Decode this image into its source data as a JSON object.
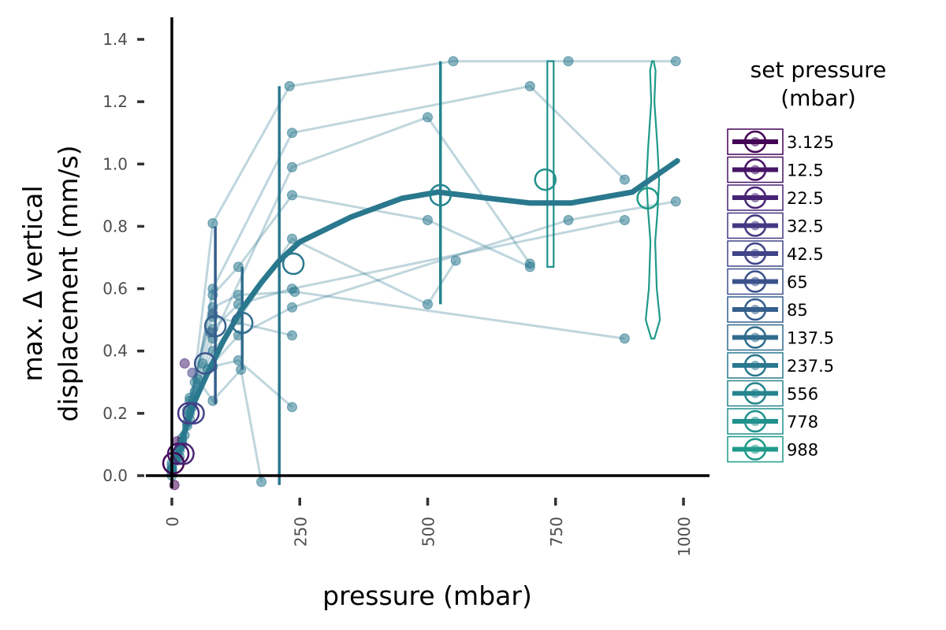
{
  "chart_data": {
    "type": "line",
    "xlabel": "pressure (mbar)",
    "ylabel_lines": [
      "max. Δ vertical",
      "displacement (mm/s)"
    ],
    "xlim": [
      0,
      1000
    ],
    "ylim": [
      0,
      1.4
    ],
    "x_ticks": [
      0,
      250,
      500,
      750,
      1000
    ],
    "x_tick_labels": [
      "0",
      "250",
      "500",
      "750",
      "1000"
    ],
    "y_ticks": [
      0.0,
      0.2,
      0.4,
      0.6,
      0.8,
      1.0,
      1.2,
      1.4
    ],
    "y_tick_labels": [
      "0.0",
      "0.2",
      "0.4",
      "0.6",
      "0.8",
      "1.0",
      "1.2",
      "1.4"
    ],
    "grid": false,
    "legend": {
      "title_lines": [
        "set pressure",
        "(mbar)"
      ],
      "placement": "right",
      "entries": [
        {
          "label": "3.125",
          "color": "#440154"
        },
        {
          "label": "12.5",
          "color": "#481466"
        },
        {
          "label": "22.5",
          "color": "#482475"
        },
        {
          "label": "32.5",
          "color": "#453781"
        },
        {
          "label": "42.5",
          "color": "#414487"
        },
        {
          "label": "65",
          "color": "#3b528b"
        },
        {
          "label": "85",
          "color": "#355f8d"
        },
        {
          "label": "137.5",
          "color": "#2f6c8e"
        },
        {
          "label": "237.5",
          "color": "#2a788e"
        },
        {
          "label": "556",
          "color": "#25848e"
        },
        {
          "label": "778",
          "color": "#21918c"
        },
        {
          "label": "988",
          "color": "#1f9a8a"
        }
      ]
    },
    "smooth_trend": {
      "color": "#2a788e",
      "points": [
        [
          0,
          0.03
        ],
        [
          10,
          0.06
        ],
        [
          25,
          0.14
        ],
        [
          45,
          0.24
        ],
        [
          70,
          0.33
        ],
        [
          100,
          0.43
        ],
        [
          135,
          0.53
        ],
        [
          175,
          0.62
        ],
        [
          210,
          0.69
        ],
        [
          250,
          0.75
        ],
        [
          350,
          0.83
        ],
        [
          450,
          0.89
        ],
        [
          520,
          0.91
        ],
        [
          620,
          0.89
        ],
        [
          700,
          0.875
        ],
        [
          780,
          0.875
        ],
        [
          900,
          0.91
        ],
        [
          988,
          1.01
        ]
      ]
    },
    "replicate_series": [
      {
        "name": "",
        "color": "#2a788e",
        "points": [
          [
            0,
            0.01
          ],
          [
            15,
            0.06
          ],
          [
            35,
            0.18
          ],
          [
            80,
            0.81
          ],
          [
            230,
            1.25
          ],
          [
            550,
            1.33
          ],
          [
            775,
            1.33
          ],
          [
            985,
            1.33
          ]
        ]
      },
      {
        "name": "",
        "color": "#2a788e",
        "points": [
          [
            0,
            0.03
          ],
          [
            15,
            0.09
          ],
          [
            35,
            0.2
          ],
          [
            80,
            0.6
          ],
          [
            235,
            1.1
          ],
          [
            700,
            1.25
          ],
          [
            885,
            0.95
          ]
        ]
      },
      {
        "name": "",
        "color": "#2a788e",
        "points": [
          [
            0,
            0.04
          ],
          [
            20,
            0.11
          ],
          [
            40,
            0.23
          ],
          [
            80,
            0.44
          ],
          [
            235,
            0.99
          ],
          [
            500,
            1.15
          ],
          [
            700,
            0.68
          ]
        ]
      },
      {
        "name": "",
        "color": "#2a788e",
        "points": [
          [
            5,
            0.05
          ],
          [
            20,
            0.12
          ],
          [
            45,
            0.3
          ],
          [
            80,
            0.58
          ],
          [
            130,
            0.67
          ],
          [
            235,
            0.9
          ],
          [
            500,
            0.82
          ],
          [
            700,
            0.67
          ]
        ]
      },
      {
        "name": "",
        "color": "#2a788e",
        "points": [
          [
            5,
            0.05
          ],
          [
            25,
            0.13
          ],
          [
            45,
            0.27
          ],
          [
            80,
            0.4
          ],
          [
            130,
            0.5
          ],
          [
            235,
            0.76
          ],
          [
            500,
            0.55
          ],
          [
            555,
            0.69
          ]
        ]
      },
      {
        "name": "",
        "color": "#2a788e",
        "points": [
          [
            0,
            0.0
          ],
          [
            20,
            0.1
          ],
          [
            40,
            0.22
          ],
          [
            70,
            0.34
          ],
          [
            130,
            0.45
          ],
          [
            235,
            0.54
          ],
          [
            775,
            0.82
          ],
          [
            985,
            0.88
          ]
        ]
      },
      {
        "name": "",
        "color": "#2a788e",
        "points": [
          [
            10,
            0.06
          ],
          [
            30,
            0.16
          ],
          [
            60,
            0.36
          ],
          [
            80,
            0.35
          ],
          [
            130,
            0.37
          ],
          [
            235,
            0.22
          ]
        ]
      },
      {
        "name": "",
        "color": "#2a788e",
        "points": [
          [
            10,
            0.07
          ],
          [
            30,
            0.17
          ],
          [
            50,
            0.31
          ],
          [
            80,
            0.24
          ],
          [
            135,
            0.34
          ],
          [
            175,
            -0.02
          ]
        ]
      },
      {
        "name": "",
        "color": "#2a788e",
        "points": [
          [
            0,
            0.02
          ],
          [
            15,
            0.08
          ],
          [
            35,
            0.24
          ],
          [
            80,
            0.47
          ],
          [
            130,
            0.55
          ],
          [
            235,
            0.6
          ],
          [
            885,
            0.82
          ]
        ]
      },
      {
        "name": "",
        "color": "#2a788e",
        "points": [
          [
            0,
            0.02
          ],
          [
            10,
            0.05
          ],
          [
            30,
            0.21
          ],
          [
            80,
            0.54
          ],
          [
            130,
            0.58
          ],
          [
            240,
            0.59
          ],
          [
            885,
            0.44
          ]
        ]
      },
      {
        "name": "",
        "color": "#2a788e",
        "points": [
          [
            0,
            0.02
          ],
          [
            15,
            0.09
          ],
          [
            35,
            0.25
          ],
          [
            80,
            0.51
          ],
          [
            235,
            0.45
          ]
        ]
      }
    ],
    "extra_points": [
      {
        "x": 80,
        "y": 0.52,
        "color": "#355f8d"
      },
      {
        "x": 75,
        "y": 0.46,
        "color": "#355f8d"
      },
      {
        "x": 25,
        "y": 0.36,
        "color": "#482475"
      },
      {
        "x": 40,
        "y": 0.33,
        "color": "#414487"
      },
      {
        "x": 5,
        "y": -0.03,
        "color": "#440154"
      },
      {
        "x": 10,
        "y": 0.11,
        "color": "#481466"
      }
    ],
    "group_means": [
      {
        "x": 3.125,
        "y": 0.04,
        "color": "#440154"
      },
      {
        "x": 12.5,
        "y": 0.07,
        "color": "#481466"
      },
      {
        "x": 22.5,
        "y": 0.07,
        "color": "#482475"
      },
      {
        "x": 32.5,
        "y": 0.2,
        "color": "#453781"
      },
      {
        "x": 42.5,
        "y": 0.2,
        "color": "#414487"
      },
      {
        "x": 65,
        "y": 0.36,
        "color": "#3b528b"
      },
      {
        "x": 85,
        "y": 0.48,
        "color": "#355f8d"
      },
      {
        "x": 137.5,
        "y": 0.49,
        "color": "#2f6c8e"
      },
      {
        "x": 237.5,
        "y": 0.68,
        "color": "#2a788e"
      },
      {
        "x": 525,
        "y": 0.9,
        "color": "#25848e"
      },
      {
        "x": 730,
        "y": 0.95,
        "color": "#21918c"
      },
      {
        "x": 930,
        "y": 0.89,
        "color": "#1f9a8a"
      }
    ],
    "ranges": [
      {
        "x": 85,
        "ymin": 0.23,
        "ymax": 0.8,
        "color": "#355f8d"
      },
      {
        "x": 137.5,
        "ymin": 0.34,
        "ymax": 0.67,
        "color": "#2f6c8e"
      },
      {
        "x": 210,
        "ymin": -0.03,
        "ymax": 1.25,
        "color": "#2a788e"
      },
      {
        "x": 525,
        "ymin": 0.55,
        "ymax": 1.33,
        "color": "#25848e"
      }
    ],
    "violins": [
      {
        "x": 740,
        "ymin": 0.67,
        "ymax": 1.33,
        "half_width": 4,
        "color": "#21918c"
      },
      {
        "x": 940,
        "ymin": 0.44,
        "ymax": 1.33,
        "half_width": 10,
        "color": "#1f9a8a",
        "profile": [
          [
            0.44,
            0.2
          ],
          [
            0.5,
            0.9
          ],
          [
            0.6,
            0.5
          ],
          [
            0.75,
            0.3
          ],
          [
            0.85,
            0.6
          ],
          [
            0.95,
            0.8
          ],
          [
            1.05,
            0.6
          ],
          [
            1.2,
            0.2
          ],
          [
            1.3,
            0.35
          ],
          [
            1.33,
            0.1
          ]
        ]
      }
    ]
  }
}
